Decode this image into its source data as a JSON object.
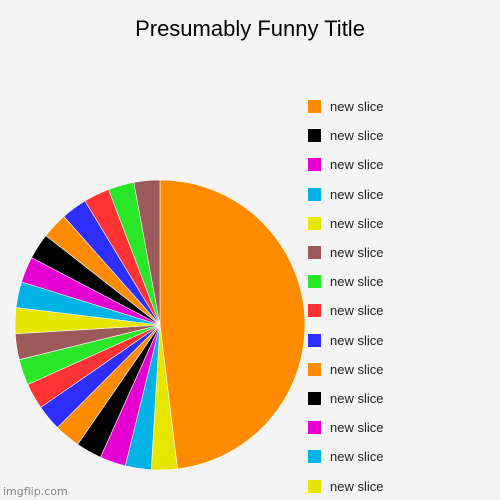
{
  "chart_data": {
    "type": "pie",
    "title": "Presumably Funny Title",
    "slices": [
      {
        "label": "new slice",
        "value": 50,
        "color": "#ff8c00"
      },
      {
        "label": "new slice",
        "value": 3,
        "color": "#e6e600"
      },
      {
        "label": "new slice",
        "value": 3,
        "color": "#00b2e6"
      },
      {
        "label": "new slice",
        "value": 3,
        "color": "#e600d2"
      },
      {
        "label": "new slice",
        "value": 3,
        "color": "#000000"
      },
      {
        "label": "new slice",
        "value": 3,
        "color": "#ff8c00"
      },
      {
        "label": "new slice",
        "value": 3,
        "color": "#2e2eff"
      },
      {
        "label": "new slice",
        "value": 3,
        "color": "#ff3333"
      },
      {
        "label": "new slice",
        "value": 3,
        "color": "#29e629"
      },
      {
        "label": "new slice",
        "value": 3,
        "color": "#9c5a5a"
      },
      {
        "label": "new slice",
        "value": 3,
        "color": "#e6e600"
      },
      {
        "label": "new slice",
        "value": 3,
        "color": "#00b2e6"
      },
      {
        "label": "new slice",
        "value": 3,
        "color": "#e600d2"
      },
      {
        "label": "new slice",
        "value": 3,
        "color": "#000000"
      },
      {
        "label": "new slice",
        "value": 3,
        "color": "#ff8c00"
      },
      {
        "label": "new slice",
        "value": 3,
        "color": "#2e2eff"
      },
      {
        "label": "new slice",
        "value": 3,
        "color": "#ff3333"
      },
      {
        "label": "new slice",
        "value": 3,
        "color": "#29e629"
      },
      {
        "label": "new slice",
        "value": 3,
        "color": "#9c5a5a"
      }
    ],
    "legend": {
      "placement": "right",
      "entries": [
        {
          "label": "new slice",
          "color": "#ff8c00"
        },
        {
          "label": "new slice",
          "color": "#000000"
        },
        {
          "label": "new slice",
          "color": "#e600d2"
        },
        {
          "label": "new slice",
          "color": "#00b2e6"
        },
        {
          "label": "new slice",
          "color": "#e6e600"
        },
        {
          "label": "new slice",
          "color": "#9c5a5a"
        },
        {
          "label": "new slice",
          "color": "#29e629"
        },
        {
          "label": "new slice",
          "color": "#ff3333"
        },
        {
          "label": "new slice",
          "color": "#2e2eff"
        },
        {
          "label": "new slice",
          "color": "#ff8c00"
        },
        {
          "label": "new slice",
          "color": "#000000"
        },
        {
          "label": "new slice",
          "color": "#e600d2"
        },
        {
          "label": "new slice",
          "color": "#00b2e6"
        },
        {
          "label": "new slice",
          "color": "#e6e600"
        }
      ]
    }
  },
  "watermark": "imgflip.com"
}
